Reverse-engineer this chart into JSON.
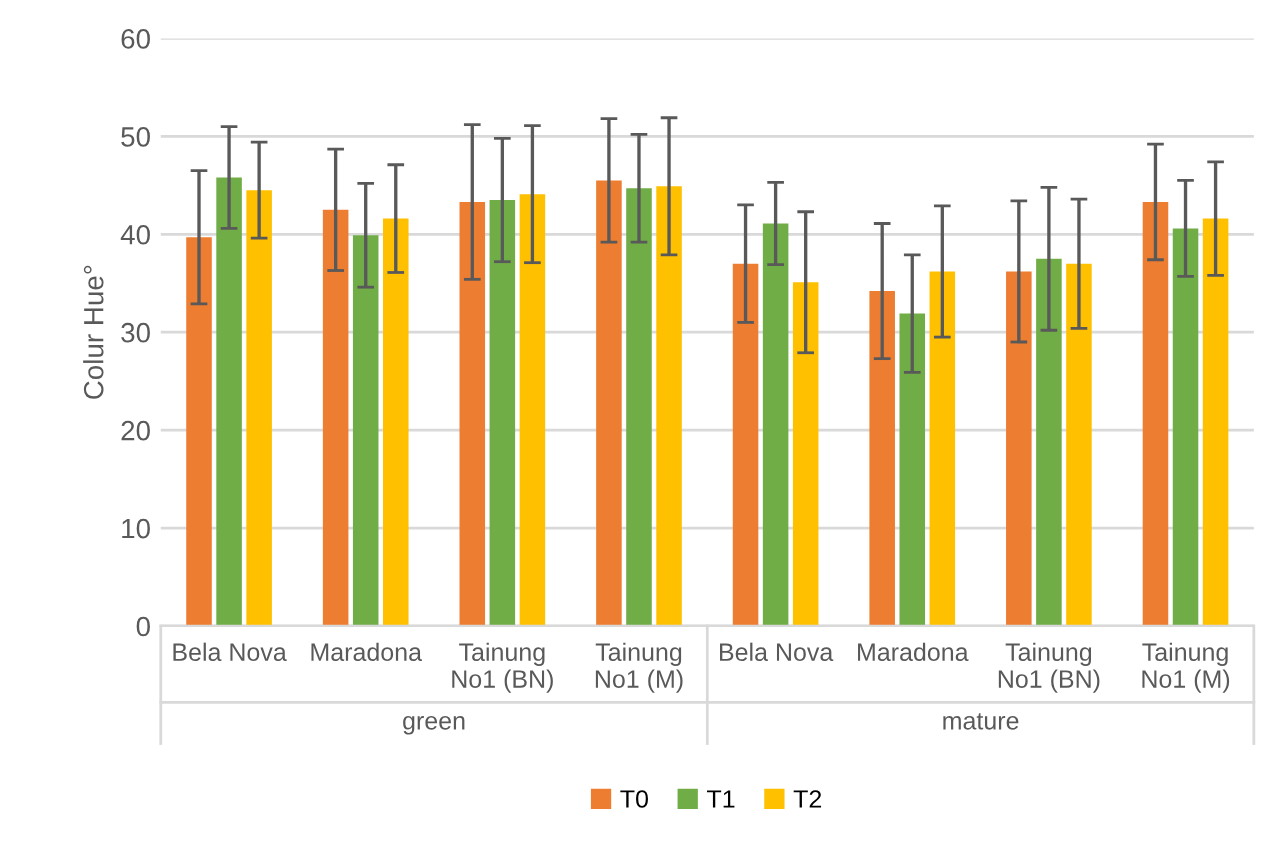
{
  "chart_data": {
    "type": "bar",
    "ylabel": "Colur Hue°",
    "categories": [
      "Bela Nova",
      "Maradona",
      "Tainung\nNo1 (BN)",
      "Tainung\nNo1 (M)",
      "Bela Nova",
      "Maradona",
      "Tainung\nNo1 (BN)",
      "Tainung\nNo1 (M)"
    ],
    "series": [
      {
        "name": "T0",
        "color": "#ed7d31",
        "values": [
          39.7,
          42.5,
          43.3,
          45.5,
          37.0,
          34.2,
          36.2,
          43.3
        ],
        "errors": [
          6.8,
          6.2,
          7.9,
          6.3,
          6.0,
          6.9,
          7.2,
          5.9
        ]
      },
      {
        "name": "T1",
        "color": "#70ad47",
        "values": [
          45.8,
          39.9,
          43.5,
          44.7,
          41.1,
          31.9,
          37.5,
          40.6
        ],
        "errors": [
          5.2,
          5.3,
          6.3,
          5.5,
          4.2,
          6.0,
          7.3,
          4.9
        ]
      },
      {
        "name": "T2",
        "color": "#ffc000",
        "values": [
          44.5,
          41.6,
          44.1,
          44.9,
          35.1,
          36.2,
          37.0,
          41.6
        ],
        "errors": [
          4.9,
          5.5,
          7.0,
          7.0,
          7.2,
          6.7,
          6.6,
          5.8
        ]
      }
    ],
    "annotations": [
      "green",
      "mature"
    ],
    "ylim": [
      0,
      60
    ],
    "yticks": [
      0,
      10,
      20,
      30,
      40,
      50,
      60
    ],
    "grid": "y",
    "legend": "bottom"
  }
}
